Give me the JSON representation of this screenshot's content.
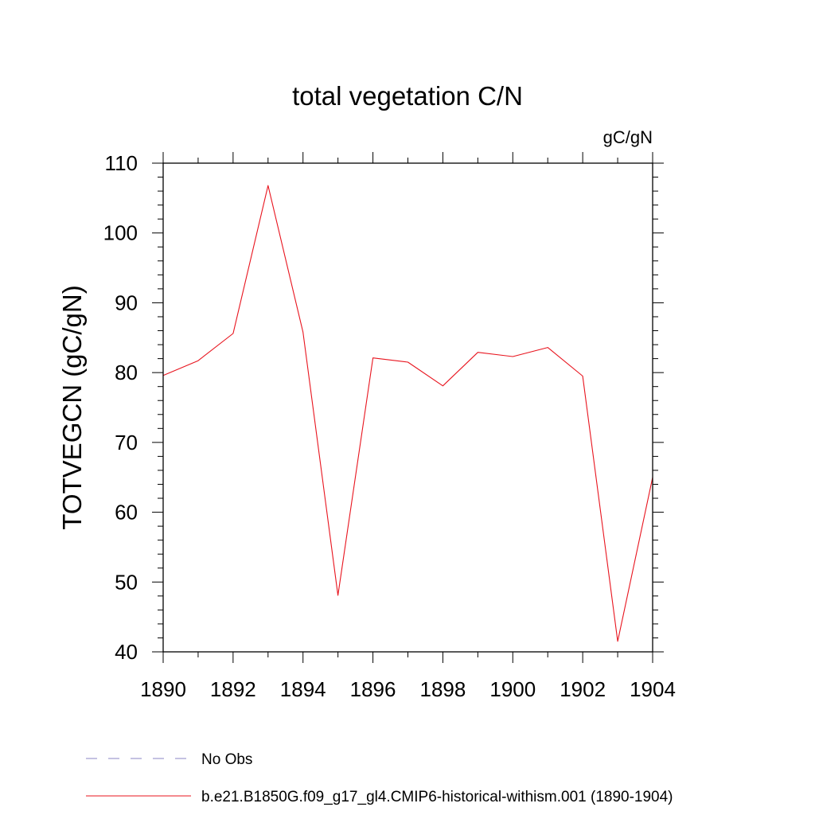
{
  "chart_data": {
    "type": "line",
    "title": "total vegetation C/N",
    "units_label": "gC/gN",
    "ylabel": "TOTVEGCN  (gC/gN)",
    "xlabel": "",
    "xlim": [
      1890,
      1904
    ],
    "ylim": [
      40,
      110
    ],
    "x_ticks": [
      1890,
      1892,
      1894,
      1896,
      1898,
      1900,
      1902,
      1904
    ],
    "y_ticks": [
      40,
      50,
      60,
      70,
      80,
      90,
      100,
      110
    ],
    "x_minor_step": 1,
    "y_minor_step": 2,
    "grid": false,
    "legend_position": "bottom-left",
    "series": [
      {
        "name": "No Obs",
        "color": "#8b84c6",
        "dash": "dashed",
        "x": [],
        "values": []
      },
      {
        "name": "b.e21.B1850G.f09_g17_gl4.CMIP6-historical-withism.001 (1890-1904)",
        "color": "#e8141e",
        "dash": "solid",
        "x": [
          1890,
          1891,
          1892,
          1893,
          1894,
          1895,
          1896,
          1897,
          1898,
          1899,
          1900,
          1901,
          1902,
          1903,
          1904
        ],
        "values": [
          79.6,
          81.7,
          85.6,
          106.8,
          85.8,
          48.1,
          82.1,
          81.5,
          78.1,
          82.9,
          82.3,
          83.6,
          79.5,
          41.5,
          65.0
        ]
      }
    ]
  }
}
